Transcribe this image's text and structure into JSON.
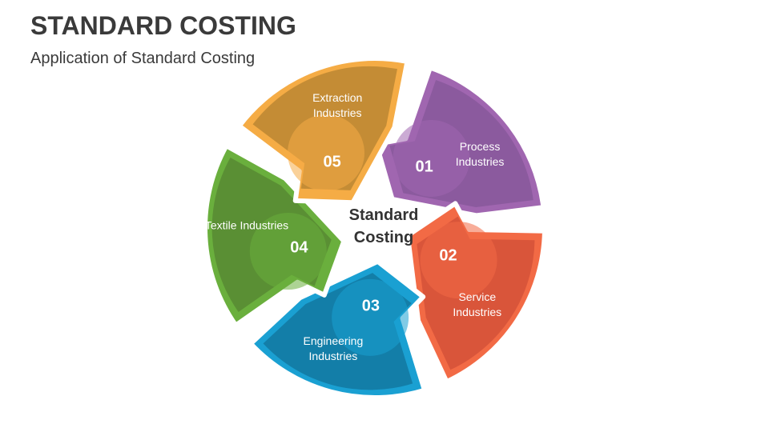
{
  "header": {
    "title": "STANDARD COSTING",
    "subtitle": "Application of Standard Costing"
  },
  "center": {
    "label": "Standard Costing"
  },
  "segments": [
    {
      "number": "01",
      "label": "Process Industries"
    },
    {
      "number": "02",
      "label": "Service Industries"
    },
    {
      "number": "03",
      "label": "Engineering Industries"
    },
    {
      "number": "04",
      "label": "Textile Industries"
    },
    {
      "number": "05",
      "label": "Extraction Industries"
    }
  ]
}
